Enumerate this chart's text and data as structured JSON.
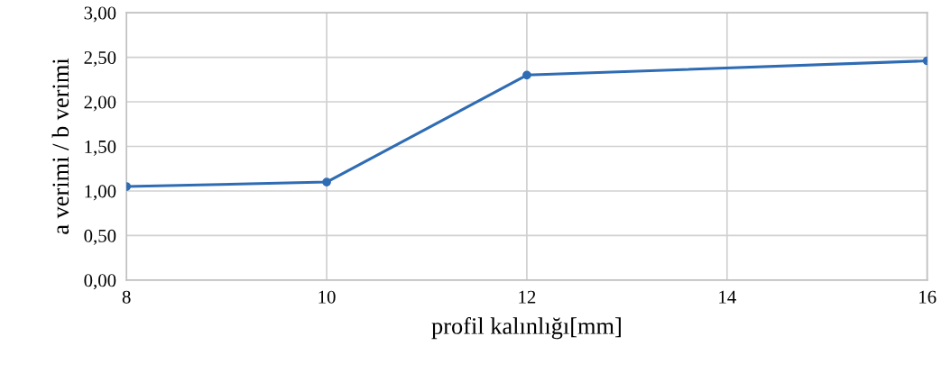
{
  "chart_data": {
    "type": "line",
    "xlabel": "profil kalınlığı[mm]",
    "ylabel": "a verimi / b verimi",
    "x": [
      8,
      10,
      12,
      16
    ],
    "series": [
      {
        "color": "#2f6cb3",
        "values": [
          1.05,
          1.1,
          2.3,
          2.46
        ]
      }
    ],
    "xlim": [
      8,
      16
    ],
    "xticks": [
      8,
      10,
      12,
      14,
      16
    ],
    "ylim": [
      0,
      3
    ],
    "yticks": [
      {
        "value": 0,
        "label": "0,00"
      },
      {
        "value": 0.5,
        "label": "0,50"
      },
      {
        "value": 1,
        "label": "1,00"
      },
      {
        "value": 1.5,
        "label": "1,50"
      },
      {
        "value": 2,
        "label": "2,00"
      },
      {
        "value": 2.5,
        "label": "2,50"
      },
      {
        "value": 3,
        "label": "3,00"
      }
    ],
    "grid": true,
    "marker": "circle"
  }
}
